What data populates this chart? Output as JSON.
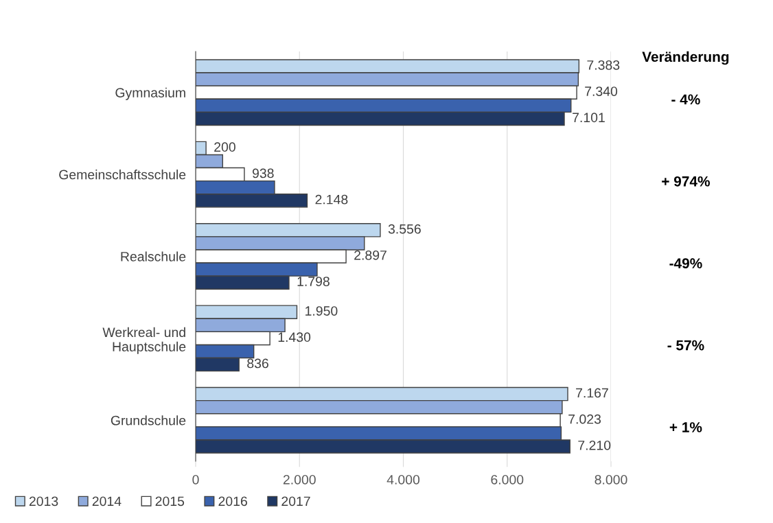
{
  "chart_data": {
    "type": "bar",
    "orientation": "horizontal",
    "categories": [
      "Gymnasium",
      "Gemeinschaftsschule",
      "Realschule",
      "Werkreal- und\nHauptschule",
      "Grundschule"
    ],
    "series": [
      {
        "name": "2013",
        "color": "#bdd7ee",
        "values": [
          7383,
          200,
          3556,
          1950,
          7167
        ],
        "value_labels": [
          "7.383",
          "200",
          "3.556",
          "1.950",
          "7.167"
        ]
      },
      {
        "name": "2014",
        "color": "#8faadc",
        "values": [
          7370,
          520,
          3250,
          1720,
          7060
        ]
      },
      {
        "name": "2015",
        "color": "#ffffff",
        "values": [
          7340,
          938,
          2897,
          1430,
          7023
        ],
        "value_labels": [
          "7.340",
          "938",
          "2.897",
          "1.430",
          "7.023"
        ]
      },
      {
        "name": "2016",
        "color": "#3a62ad",
        "values": [
          7230,
          1520,
          2340,
          1120,
          7040
        ]
      },
      {
        "name": "2017",
        "color": "#203864",
        "values": [
          7101,
          2148,
          1798,
          836,
          7210
        ],
        "value_labels": [
          "7.101",
          "2.148",
          "1.798",
          "836",
          "7.210"
        ]
      }
    ],
    "xlim": [
      0,
      8000
    ],
    "xticks": [
      0,
      {
        "value": 2000,
        "label": "2.000"
      },
      {
        "value": 4000,
        "label": "4.000"
      },
      {
        "value": 6000,
        "label": "6.000"
      },
      {
        "value": 8000,
        "label": "8.000"
      }
    ],
    "grid": "x",
    "legend": "bottom left",
    "annotations": [
      "Veränderung",
      "- 4%",
      "+ 974%",
      "-49%",
      "- 57%",
      "+ 1%"
    ]
  }
}
